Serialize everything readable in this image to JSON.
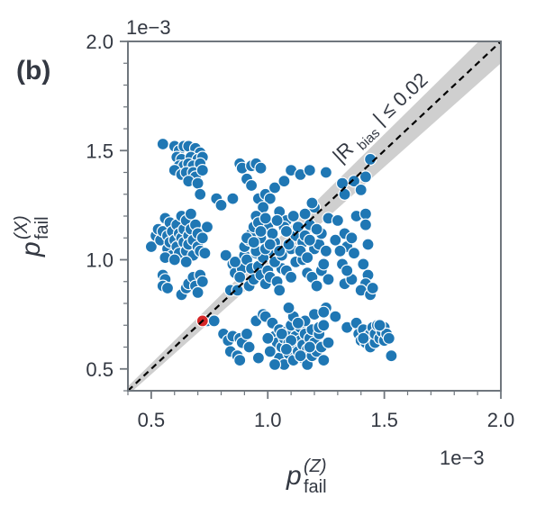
{
  "panel_label": "(b)",
  "chart_data": {
    "type": "scatter",
    "title": "",
    "xlabel": {
      "base": "p",
      "sup": "(Z)",
      "sub": "fail"
    },
    "ylabel": {
      "base": "p",
      "sup": "(X)",
      "sub": "fail"
    },
    "x_multiplier": "1e−3",
    "y_multiplier": "1e−3",
    "xlim": [
      0.4,
      2.0
    ],
    "ylim": [
      0.4,
      2.0
    ],
    "x_ticks": [
      "0.5",
      "1.0",
      "1.5",
      "2.0"
    ],
    "y_ticks": [
      "0.5",
      "1.0",
      "1.5",
      "2.0"
    ],
    "x_tick_values": [
      0.5,
      1.0,
      1.5,
      2.0
    ],
    "y_tick_values": [
      0.5,
      1.0,
      1.5,
      2.0
    ],
    "minor_tick_step": 0.1,
    "grid": false,
    "reference_line": {
      "style": "dashed",
      "slope": 1,
      "intercept": 0,
      "color": "#000000"
    },
    "band": {
      "label": "|R_bias| ≤ 0.02",
      "label_parts": {
        "pre": "|R",
        "sub": "bias",
        "post": "| ≤ 0.02"
      },
      "relative_width": 0.05,
      "color": "#bfbfbf"
    },
    "highlight_point": {
      "x": 0.72,
      "y": 0.72,
      "color": "#d62728"
    },
    "series": [
      {
        "color": "#1f77b4",
        "points": [
          [
            0.55,
            1.53
          ],
          [
            0.6,
            1.52
          ],
          [
            0.62,
            1.5
          ],
          [
            0.64,
            1.52
          ],
          [
            0.66,
            1.52
          ],
          [
            0.69,
            1.51
          ],
          [
            0.71,
            1.49
          ],
          [
            0.61,
            1.47
          ],
          [
            0.63,
            1.46
          ],
          [
            0.67,
            1.47
          ],
          [
            0.7,
            1.46
          ],
          [
            0.72,
            1.47
          ],
          [
            0.62,
            1.43
          ],
          [
            0.64,
            1.43
          ],
          [
            0.66,
            1.44
          ],
          [
            0.68,
            1.43
          ],
          [
            0.71,
            1.44
          ],
          [
            0.6,
            1.41
          ],
          [
            0.63,
            1.39
          ],
          [
            0.65,
            1.4
          ],
          [
            0.68,
            1.4
          ],
          [
            0.69,
            1.38
          ],
          [
            0.66,
            1.36
          ],
          [
            0.7,
            1.35
          ],
          [
            0.72,
            1.41
          ],
          [
            0.71,
            1.3
          ],
          [
            0.5,
            1.06
          ],
          [
            0.52,
            1.11
          ],
          [
            0.53,
            1.14
          ],
          [
            0.54,
            1.09
          ],
          [
            0.55,
            1.13
          ],
          [
            0.56,
            1.19
          ],
          [
            0.57,
            1.11
          ],
          [
            0.57,
            1.05
          ],
          [
            0.58,
            1.17
          ],
          [
            0.58,
            1.08
          ],
          [
            0.59,
            1.13
          ],
          [
            0.59,
            1.02
          ],
          [
            0.6,
            1.09
          ],
          [
            0.61,
            1.16
          ],
          [
            0.61,
            1.06
          ],
          [
            0.62,
            1.12
          ],
          [
            0.62,
            1.03
          ],
          [
            0.63,
            1.2
          ],
          [
            0.63,
            1.1
          ],
          [
            0.64,
            1.08
          ],
          [
            0.64,
            1.14
          ],
          [
            0.65,
            1.18
          ],
          [
            0.65,
            1.04
          ],
          [
            0.66,
            1.11
          ],
          [
            0.66,
            1.07
          ],
          [
            0.67,
            1.21
          ],
          [
            0.67,
            1.14
          ],
          [
            0.68,
            1.02
          ],
          [
            0.68,
            1.09
          ],
          [
            0.69,
            1.16
          ],
          [
            0.7,
            1.06
          ],
          [
            0.7,
            1.12
          ],
          [
            0.71,
            1.04
          ],
          [
            0.72,
            1.1
          ],
          [
            0.73,
            1.03
          ],
          [
            0.74,
            1.15
          ],
          [
            0.56,
            1.01
          ],
          [
            0.6,
            1.0
          ],
          [
            0.65,
            0.99
          ],
          [
            0.55,
            0.93
          ],
          [
            0.56,
            0.91
          ],
          [
            0.55,
            0.88
          ],
          [
            0.57,
            0.87
          ],
          [
            0.63,
            0.84
          ],
          [
            0.65,
            0.87
          ],
          [
            0.66,
            0.89
          ],
          [
            0.68,
            0.92
          ],
          [
            0.69,
            0.88
          ],
          [
            0.7,
            0.85
          ],
          [
            0.71,
            0.93
          ],
          [
            0.72,
            0.9
          ],
          [
            0.74,
            0.72
          ],
          [
            0.77,
            0.72
          ],
          [
            0.78,
            1.28
          ],
          [
            0.8,
            1.25
          ],
          [
            0.85,
            1.28
          ],
          [
            0.82,
            1.02
          ],
          [
            0.84,
            0.86
          ],
          [
            0.85,
            0.98
          ],
          [
            0.87,
            0.86
          ],
          [
            0.86,
            0.94
          ],
          [
            0.89,
            0.96
          ],
          [
            0.88,
            0.92
          ],
          [
            0.86,
            0.99
          ],
          [
            0.9,
            1.02
          ],
          [
            0.91,
            1.0
          ],
          [
            0.92,
            0.88
          ],
          [
            0.93,
            0.96
          ],
          [
            0.94,
            0.91
          ],
          [
            0.95,
            1.03
          ],
          [
            0.96,
            0.97
          ],
          [
            0.97,
            0.93
          ],
          [
            0.98,
            1.01
          ],
          [
            0.99,
            0.89
          ],
          [
            1.0,
            0.95
          ],
          [
            1.01,
            0.92
          ],
          [
            1.02,
            1.04
          ],
          [
            1.04,
            0.9
          ],
          [
            1.05,
            0.86
          ],
          [
            1.06,
            0.96
          ],
          [
            1.08,
            0.95
          ],
          [
            1.1,
            0.92
          ],
          [
            1.12,
            0.99
          ],
          [
            1.15,
            1.0
          ],
          [
            1.17,
            0.94
          ],
          [
            1.19,
            0.92
          ],
          [
            1.21,
            0.88
          ],
          [
            1.23,
            0.95
          ],
          [
            1.26,
            0.91
          ],
          [
            1.24,
            0.98
          ],
          [
            1.2,
            1.05
          ],
          [
            0.88,
            1.44
          ],
          [
            0.89,
            1.42
          ],
          [
            0.93,
            1.43
          ],
          [
            0.95,
            1.44
          ],
          [
            0.97,
            1.42
          ],
          [
            0.91,
            1.37
          ],
          [
            0.93,
            1.34
          ],
          [
            0.96,
            1.28
          ],
          [
            0.99,
            1.3
          ],
          [
            1.01,
            1.28
          ],
          [
            1.03,
            1.33
          ],
          [
            1.1,
            1.41
          ],
          [
            1.14,
            1.39
          ],
          [
            1.18,
            1.41
          ],
          [
            1.25,
            1.4
          ],
          [
            1.07,
            1.36
          ],
          [
            0.98,
            1.24
          ],
          [
            1.05,
            1.22
          ],
          [
            1.08,
            1.18
          ],
          [
            1.0,
            1.15
          ],
          [
            0.95,
            1.2
          ],
          [
            1.03,
            1.08
          ],
          [
            0.97,
            1.1
          ],
          [
            1.12,
            1.11
          ],
          [
            1.15,
            1.08
          ],
          [
            1.11,
            1.2
          ],
          [
            1.18,
            1.16
          ],
          [
            1.2,
            1.24
          ],
          [
            1.16,
            1.21
          ],
          [
            1.22,
            1.07
          ],
          [
            1.26,
            1.19
          ],
          [
            1.1,
            1.05
          ],
          [
            1.23,
            1.12
          ],
          [
            1.19,
            1.26
          ],
          [
            0.9,
            1.06
          ],
          [
            0.92,
            1.09
          ],
          [
            0.93,
            1.12
          ],
          [
            0.94,
            1.15
          ],
          [
            0.95,
            1.04
          ],
          [
            0.96,
            1.17
          ],
          [
            0.99,
            1.05
          ],
          [
            1.02,
            1.12
          ],
          [
            1.03,
            0.99
          ],
          [
            1.06,
            1.02
          ],
          [
            1.07,
            1.15
          ],
          [
            1.09,
            1.07
          ],
          [
            1.14,
            1.04
          ],
          [
            1.17,
            1.01
          ],
          [
            1.25,
            1.04
          ],
          [
            0.91,
            1.1
          ],
          [
            0.94,
            1.08
          ],
          [
            0.97,
            1.13
          ],
          [
            0.99,
            1.19
          ],
          [
            1.01,
            1.07
          ],
          [
            1.04,
            1.18
          ],
          [
            1.05,
            1.04
          ],
          [
            1.08,
            1.13
          ],
          [
            1.13,
            1.15
          ],
          [
            1.16,
            1.11
          ],
          [
            1.18,
            1.09
          ],
          [
            1.21,
            1.14
          ],
          [
            0.81,
            0.66
          ],
          [
            0.83,
            0.63
          ],
          [
            0.85,
            0.65
          ],
          [
            0.84,
            0.58
          ],
          [
            0.87,
            0.56
          ],
          [
            0.88,
            0.64
          ],
          [
            0.89,
            0.62
          ],
          [
            0.91,
            0.66
          ],
          [
            0.92,
            0.6
          ],
          [
            0.95,
            0.72
          ],
          [
            0.96,
            0.55
          ],
          [
            0.98,
            0.75
          ],
          [
            0.99,
            0.74
          ],
          [
            1.02,
            0.71
          ],
          [
            1.03,
            0.65
          ],
          [
            1.04,
            0.62
          ],
          [
            1.05,
            0.68
          ],
          [
            1.05,
            0.55
          ],
          [
            1.06,
            0.6
          ],
          [
            1.07,
            0.64
          ],
          [
            1.07,
            0.52
          ],
          [
            1.08,
            0.67
          ],
          [
            1.09,
            0.57
          ],
          [
            1.09,
            0.62
          ],
          [
            1.1,
            0.7
          ],
          [
            1.11,
            0.54
          ],
          [
            1.12,
            0.6
          ],
          [
            1.12,
            0.65
          ],
          [
            1.13,
            0.58
          ],
          [
            1.14,
            0.63
          ],
          [
            1.14,
            0.69
          ],
          [
            1.15,
            0.55
          ],
          [
            1.15,
            0.61
          ],
          [
            1.16,
            0.66
          ],
          [
            1.17,
            0.59
          ],
          [
            1.17,
            0.52
          ],
          [
            1.18,
            0.64
          ],
          [
            1.19,
            0.68
          ],
          [
            1.19,
            0.56
          ],
          [
            1.2,
            0.62
          ],
          [
            1.21,
            0.58
          ],
          [
            1.22,
            0.66
          ],
          [
            1.23,
            0.6
          ],
          [
            1.24,
            0.54
          ],
          [
            1.16,
            0.72
          ],
          [
            1.22,
            0.69
          ],
          [
            1.26,
            0.62
          ],
          [
            1.2,
            0.75
          ],
          [
            1.24,
            0.7
          ],
          [
            1.11,
            0.74
          ],
          [
            1.09,
            0.78
          ],
          [
            0.88,
            0.54
          ],
          [
            1.0,
            0.64
          ],
          [
            1.13,
            0.71
          ],
          [
            1.18,
            0.6
          ],
          [
            1.06,
            0.66
          ],
          [
            1.1,
            0.63
          ],
          [
            1.14,
            0.56
          ],
          [
            1.25,
            0.78
          ],
          [
            1.29,
            0.74
          ],
          [
            1.34,
            0.69
          ],
          [
            1.38,
            0.71
          ],
          [
            1.24,
            0.76
          ],
          [
            1.01,
            0.58
          ],
          [
            1.03,
            0.52
          ],
          [
            1.08,
            0.59
          ],
          [
            1.33,
            0.89
          ],
          [
            1.36,
            0.91
          ],
          [
            1.32,
            0.98
          ],
          [
            1.34,
            1.06
          ],
          [
            1.37,
            1.03
          ],
          [
            1.33,
            1.12
          ],
          [
            1.36,
            1.1
          ],
          [
            1.34,
            0.95
          ],
          [
            1.38,
            1.2
          ],
          [
            1.32,
            1.35
          ],
          [
            1.33,
            1.3
          ],
          [
            1.37,
            1.36
          ],
          [
            1.4,
            1.32
          ],
          [
            1.42,
            1.38
          ],
          [
            1.44,
            1.46
          ],
          [
            1.42,
            1.21
          ],
          [
            1.42,
            1.16
          ],
          [
            1.43,
            1.07
          ],
          [
            1.41,
            0.98
          ],
          [
            1.43,
            0.93
          ],
          [
            1.42,
            0.89
          ],
          [
            1.4,
            0.86
          ],
          [
            1.44,
            0.84
          ],
          [
            1.45,
            0.87
          ],
          [
            1.3,
            1.18
          ],
          [
            1.29,
            1.09
          ],
          [
            1.31,
            1.04
          ],
          [
            1.39,
            0.66
          ],
          [
            1.4,
            0.63
          ],
          [
            1.41,
            0.68
          ],
          [
            1.42,
            0.62
          ],
          [
            1.43,
            0.65
          ],
          [
            1.44,
            0.66
          ],
          [
            1.44,
            0.6
          ],
          [
            1.45,
            0.69
          ],
          [
            1.46,
            0.62
          ],
          [
            1.46,
            0.66
          ],
          [
            1.47,
            0.7
          ],
          [
            1.48,
            0.64
          ],
          [
            1.49,
            0.67
          ],
          [
            1.5,
            0.69
          ],
          [
            1.5,
            0.63
          ],
          [
            1.51,
            0.66
          ],
          [
            1.52,
            0.64
          ],
          [
            1.53,
            0.56
          ],
          [
            1.48,
            0.7
          ],
          [
            1.41,
            0.64
          ]
        ]
      }
    ]
  }
}
